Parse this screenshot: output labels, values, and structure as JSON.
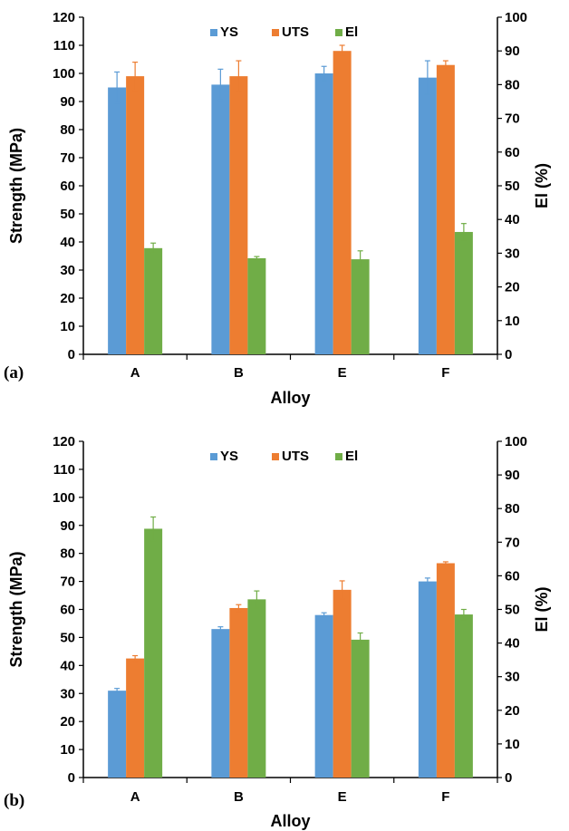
{
  "chart_data": [
    {
      "type": "bar",
      "panel_label": "(a)",
      "categories": [
        "A",
        "B",
        "E",
        "F"
      ],
      "xlabel": "Alloy",
      "ylabel": "Strength (MPa)",
      "y2label": "El (%)",
      "ylim": [
        0,
        120
      ],
      "y2lim": [
        0,
        100
      ],
      "yticks": [
        "0",
        "10",
        "20",
        "30",
        "40",
        "50",
        "60",
        "70",
        "80",
        "90",
        "100",
        "110",
        "120"
      ],
      "y2ticks": [
        "0",
        "10",
        "20",
        "30",
        "40",
        "50",
        "60",
        "70",
        "80",
        "90",
        "100"
      ],
      "legend_position": "top-center",
      "series": [
        {
          "name": "YS",
          "axis": "left",
          "color": "#5b9bd5",
          "values": [
            95,
            96,
            100,
            98.5
          ],
          "errors": [
            5.5,
            5.5,
            2.5,
            6
          ]
        },
        {
          "name": "UTS",
          "axis": "left",
          "color": "#ed7d31",
          "values": [
            99,
            99,
            108,
            103
          ],
          "errors": [
            5,
            5.5,
            2,
            1.5
          ]
        },
        {
          "name": "El",
          "axis": "right",
          "color": "#70ad47",
          "values": [
            31.5,
            28.5,
            28.2,
            36.3
          ],
          "errors": [
            1.5,
            0.5,
            2.5,
            2.5
          ]
        }
      ]
    },
    {
      "type": "bar",
      "panel_label": "(b)",
      "categories": [
        "A",
        "B",
        "E",
        "F"
      ],
      "xlabel": "Alloy",
      "ylabel": "Strength (MPa)",
      "y2label": "El (%)",
      "ylim": [
        0,
        120
      ],
      "y2lim": [
        0,
        100
      ],
      "yticks": [
        "0",
        "10",
        "20",
        "30",
        "40",
        "50",
        "60",
        "70",
        "80",
        "90",
        "100",
        "110",
        "120"
      ],
      "y2ticks": [
        "0",
        "10",
        "20",
        "30",
        "40",
        "50",
        "60",
        "70",
        "80",
        "90",
        "100"
      ],
      "legend_position": "top-center",
      "series": [
        {
          "name": "YS",
          "axis": "left",
          "color": "#5b9bd5",
          "values": [
            31,
            53,
            58,
            70
          ],
          "errors": [
            0.8,
            0.8,
            0.8,
            1.2
          ]
        },
        {
          "name": "UTS",
          "axis": "left",
          "color": "#ed7d31",
          "values": [
            42.5,
            60.5,
            67,
            76.5
          ],
          "errors": [
            1,
            1.2,
            3.2,
            0.5
          ]
        },
        {
          "name": "El",
          "axis": "right",
          "color": "#70ad47",
          "values": [
            74,
            53,
            41,
            48.5
          ],
          "errors": [
            3.5,
            2.5,
            2,
            1.5
          ]
        }
      ]
    }
  ]
}
